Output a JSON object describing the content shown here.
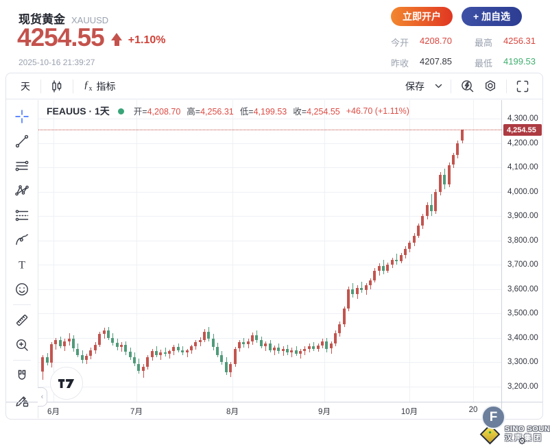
{
  "header": {
    "title": "现货黄金",
    "symbol": "XAUUSD",
    "price": "4254.55",
    "change_percent": "+1.10%",
    "timestamp": "2025-10-16 21:39:27",
    "buttons": {
      "open_account": "立即开户",
      "add_watchlist": "+ 加自选"
    },
    "stats": [
      {
        "label": "今开",
        "value": "4208.70",
        "color": "red"
      },
      {
        "label": "最高",
        "value": "4256.31",
        "color": "red"
      },
      {
        "label": "昨收",
        "value": "4207.85",
        "color": "dark"
      },
      {
        "label": "最低",
        "value": "4199.53",
        "color": "green"
      }
    ]
  },
  "toolbar": {
    "interval": "天",
    "fx_label": "指标",
    "save_label": "保存"
  },
  "sidebar": {
    "tools": [
      {
        "name": "crosshair",
        "active": true
      },
      {
        "name": "trend-line"
      },
      {
        "name": "horizontal-line"
      },
      {
        "name": "xabcd-pattern"
      },
      {
        "name": "parallel-channel"
      },
      {
        "name": "brush"
      },
      {
        "name": "text"
      },
      {
        "name": "emoji"
      },
      {
        "divider": true
      },
      {
        "name": "ruler"
      },
      {
        "name": "zoom-in"
      },
      {
        "divider": true
      },
      {
        "name": "magnet"
      },
      {
        "name": "lock-drawing"
      }
    ]
  },
  "legend": {
    "series": "FEAUUS · 1天",
    "items": [
      {
        "label": "开",
        "value": "4,208.70"
      },
      {
        "label": "高",
        "value": "4,256.31"
      },
      {
        "label": "低",
        "value": "4,199.53"
      },
      {
        "label": "收",
        "value": "4,254.55"
      }
    ],
    "change": "+46.70 (+1.11%)"
  },
  "watermark": {
    "badge": "F",
    "line1": "SINO SOUND",
    "line2": "汉声集团"
  },
  "colors": {
    "up_candle": "#c2544e",
    "down_candle": "#4f9a79",
    "price_line": "#bd4a42",
    "tag_bg": "#ad3b42",
    "accent_blue": "#2962ff",
    "red_text": "#d9443d",
    "green_text": "#3fae6e",
    "open_btn_gradient": [
      "#f2872e",
      "#e03722"
    ],
    "watch_btn_gradient": [
      "#3d50a5",
      "#2c3d92"
    ]
  },
  "chart_data": {
    "type": "candlestick",
    "title": "FEAUUS · 1天",
    "symbol": "FEAUUS",
    "interval": "1天",
    "ylim": [
      3138,
      4376
    ],
    "total_slots": 106,
    "grid": true,
    "y_grid": {
      "values": [
        4300,
        4200,
        4100,
        4000,
        3900,
        3800,
        3700,
        3600,
        3500,
        3400,
        3300,
        3200
      ],
      "labels": [
        "4,300.00",
        "4,200.00",
        "4,100.00",
        "4,000.00",
        "3,900.00",
        "3,800.00",
        "3,700.00",
        "3,600.00",
        "3,500.00",
        "3,400.00",
        "3,300.00",
        "3,200.00"
      ]
    },
    "x_ticks": [
      {
        "label": "6月",
        "slot": 2.5
      },
      {
        "label": "7月",
        "slot": 21.5
      },
      {
        "label": "8月",
        "slot": 43.5
      },
      {
        "label": "9月",
        "slot": 64.5
      },
      {
        "label": "10月",
        "slot": 84
      },
      {
        "label": "20",
        "slot": 98.5
      }
    ],
    "price_line": {
      "value": 4254.55,
      "label": "4,254.55"
    },
    "ohlc_note": "candles are [open, high, low, close]; red=up, green=down",
    "candles": [
      [
        3262,
        3330,
        3228,
        3320
      ],
      [
        3320,
        3338,
        3288,
        3298
      ],
      [
        3298,
        3382,
        3280,
        3374
      ],
      [
        3374,
        3400,
        3352,
        3390
      ],
      [
        3390,
        3406,
        3356,
        3366
      ],
      [
        3366,
        3396,
        3346,
        3386
      ],
      [
        3386,
        3420,
        3368,
        3396
      ],
      [
        3396,
        3410,
        3342,
        3356
      ],
      [
        3356,
        3376,
        3320,
        3330
      ],
      [
        3330,
        3350,
        3296,
        3310
      ],
      [
        3310,
        3336,
        3292,
        3326
      ],
      [
        3326,
        3360,
        3312,
        3350
      ],
      [
        3350,
        3382,
        3336,
        3372
      ],
      [
        3372,
        3426,
        3362,
        3416
      ],
      [
        3416,
        3443,
        3396,
        3432
      ],
      [
        3432,
        3446,
        3390,
        3400
      ],
      [
        3400,
        3420,
        3370,
        3380
      ],
      [
        3380,
        3396,
        3350,
        3362
      ],
      [
        3362,
        3382,
        3342,
        3372
      ],
      [
        3372,
        3386,
        3330,
        3344
      ],
      [
        3344,
        3360,
        3310,
        3320
      ],
      [
        3320,
        3340,
        3284,
        3294
      ],
      [
        3294,
        3314,
        3252,
        3264
      ],
      [
        3264,
        3292,
        3236,
        3282
      ],
      [
        3282,
        3330,
        3270,
        3322
      ],
      [
        3322,
        3356,
        3306,
        3346
      ],
      [
        3346,
        3366,
        3320,
        3330
      ],
      [
        3330,
        3352,
        3310,
        3342
      ],
      [
        3342,
        3360,
        3324,
        3334
      ],
      [
        3334,
        3352,
        3316,
        3346
      ],
      [
        3346,
        3372,
        3330,
        3362
      ],
      [
        3362,
        3376,
        3340,
        3350
      ],
      [
        3350,
        3366,
        3330,
        3340
      ],
      [
        3340,
        3356,
        3322,
        3350
      ],
      [
        3350,
        3372,
        3336,
        3366
      ],
      [
        3366,
        3392,
        3352,
        3382
      ],
      [
        3382,
        3402,
        3366,
        3392
      ],
      [
        3392,
        3436,
        3382,
        3426
      ],
      [
        3426,
        3446,
        3386,
        3396
      ],
      [
        3396,
        3416,
        3350,
        3362
      ],
      [
        3362,
        3380,
        3320,
        3330
      ],
      [
        3330,
        3346,
        3290,
        3300
      ],
      [
        3300,
        3320,
        3248,
        3258
      ],
      [
        3258,
        3300,
        3240,
        3292
      ],
      [
        3292,
        3364,
        3282,
        3356
      ],
      [
        3356,
        3392,
        3342,
        3382
      ],
      [
        3382,
        3400,
        3360,
        3374
      ],
      [
        3374,
        3396,
        3356,
        3386
      ],
      [
        3386,
        3422,
        3372,
        3412
      ],
      [
        3412,
        3430,
        3380,
        3390
      ],
      [
        3390,
        3406,
        3356,
        3366
      ],
      [
        3366,
        3386,
        3346,
        3376
      ],
      [
        3376,
        3390,
        3340,
        3350
      ],
      [
        3350,
        3370,
        3330,
        3360
      ],
      [
        3360,
        3376,
        3336,
        3346
      ],
      [
        3346,
        3366,
        3326,
        3356
      ],
      [
        3356,
        3372,
        3330,
        3340
      ],
      [
        3340,
        3360,
        3320,
        3350
      ],
      [
        3350,
        3366,
        3326,
        3336
      ],
      [
        3336,
        3356,
        3316,
        3346
      ],
      [
        3346,
        3366,
        3330,
        3356
      ],
      [
        3356,
        3376,
        3340,
        3366
      ],
      [
        3366,
        3382,
        3346,
        3356
      ],
      [
        3356,
        3376,
        3342,
        3370
      ],
      [
        3370,
        3396,
        3356,
        3386
      ],
      [
        3386,
        3400,
        3340,
        3356
      ],
      [
        3356,
        3386,
        3336,
        3376
      ],
      [
        3376,
        3430,
        3366,
        3420
      ],
      [
        3420,
        3466,
        3406,
        3456
      ],
      [
        3456,
        3530,
        3446,
        3520
      ],
      [
        3520,
        3610,
        3510,
        3600
      ],
      [
        3600,
        3626,
        3566,
        3580
      ],
      [
        3580,
        3616,
        3560,
        3606
      ],
      [
        3606,
        3630,
        3586,
        3596
      ],
      [
        3596,
        3626,
        3576,
        3616
      ],
      [
        3616,
        3646,
        3600,
        3636
      ],
      [
        3636,
        3686,
        3626,
        3676
      ],
      [
        3676,
        3706,
        3656,
        3696
      ],
      [
        3696,
        3720,
        3660,
        3676
      ],
      [
        3676,
        3710,
        3666,
        3700
      ],
      [
        3700,
        3730,
        3686,
        3720
      ],
      [
        3720,
        3746,
        3700,
        3716
      ],
      [
        3716,
        3750,
        3706,
        3740
      ],
      [
        3740,
        3776,
        3726,
        3766
      ],
      [
        3766,
        3800,
        3750,
        3790
      ],
      [
        3790,
        3830,
        3776,
        3820
      ],
      [
        3820,
        3870,
        3810,
        3860
      ],
      [
        3860,
        3910,
        3846,
        3900
      ],
      [
        3900,
        3956,
        3886,
        3946
      ],
      [
        3946,
        3990,
        3900,
        3920
      ],
      [
        3920,
        4010,
        3910,
        4000
      ],
      [
        4000,
        4080,
        3986,
        4070
      ],
      [
        4070,
        4096,
        4010,
        4030
      ],
      [
        4030,
        4120,
        4020,
        4110
      ],
      [
        4110,
        4160,
        4096,
        4150
      ],
      [
        4150,
        4210,
        4136,
        4200
      ],
      [
        4208.7,
        4256.31,
        4199.53,
        4254.55
      ]
    ]
  }
}
